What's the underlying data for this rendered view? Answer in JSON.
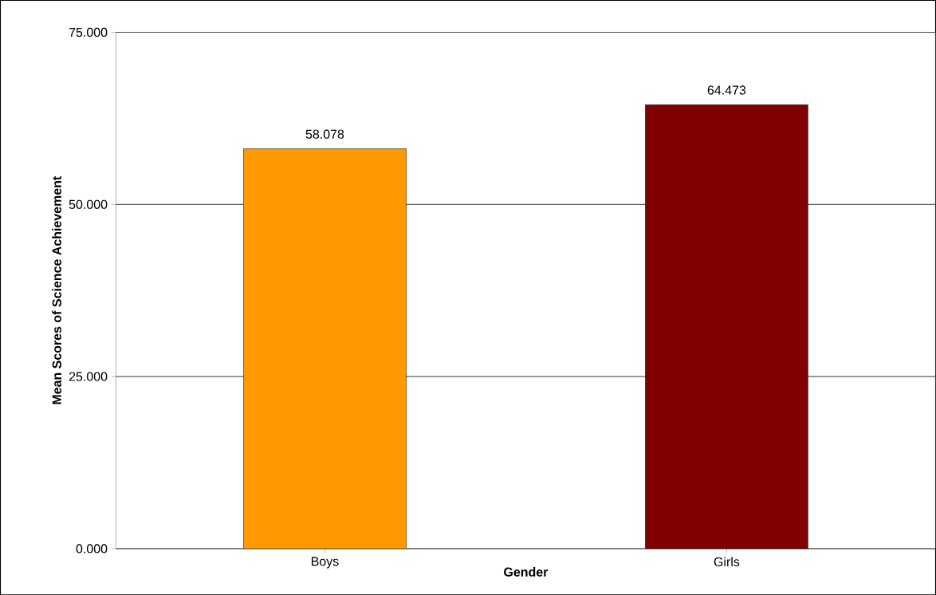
{
  "chart_data": {
    "type": "bar",
    "xlabel": "Gender",
    "ylabel": "Mean Scores of Science Achievement",
    "categories": [
      "Boys",
      "Girls"
    ],
    "values": [
      58.078,
      64.473
    ],
    "colors": [
      "#ff9900",
      "#800000"
    ],
    "ylim": [
      0,
      75
    ],
    "yticks": [
      {
        "value": 0,
        "label": "0.000"
      },
      {
        "value": 25,
        "label": "25.000"
      },
      {
        "value": 50,
        "label": "50.000"
      },
      {
        "value": 75,
        "label": "75.000"
      }
    ],
    "grid": "y",
    "data_labels": true
  }
}
